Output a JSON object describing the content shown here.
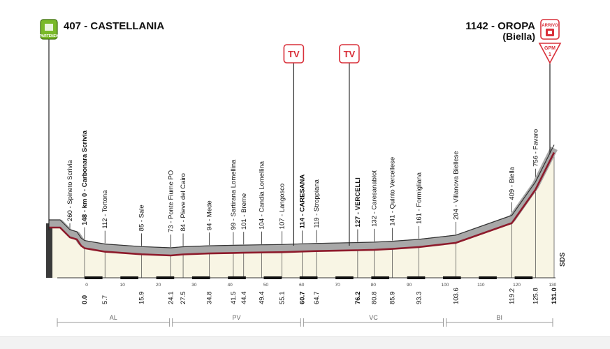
{
  "start": {
    "badge": "PARTENZA",
    "label": "407 - CASTELLANIA"
  },
  "finish": {
    "label": "1142 - OROPA",
    "sublabel": "(Biella)",
    "badge": "ARRIVO",
    "gpm_label": "GPM",
    "gpm_cat": "1"
  },
  "tv_label": "TV",
  "watermark": "SDS",
  "colors": {
    "profile_gray": "#a8a8a8",
    "route_red": "#8e1b2c",
    "fill": "#f8f5e4",
    "badge_green": "#7ab929",
    "badge_red": "#d9303a"
  },
  "chart_data": {
    "type": "area",
    "xlabel": "",
    "ylabel": "",
    "xlim": [
      0,
      131
    ],
    "x_ticks": [
      "0",
      "10",
      "20",
      "30",
      "40",
      "50",
      "60",
      "70",
      "80",
      "90",
      "100",
      "110",
      "120",
      "130"
    ],
    "profile": [
      {
        "km": 0.0,
        "alt": 148
      },
      {
        "km": 5.7,
        "alt": 112
      },
      {
        "km": 15.9,
        "alt": 85
      },
      {
        "km": 24.1,
        "alt": 73
      },
      {
        "km": 27.5,
        "alt": 84
      },
      {
        "km": 34.8,
        "alt": 94
      },
      {
        "km": 41.5,
        "alt": 99
      },
      {
        "km": 44.4,
        "alt": 101
      },
      {
        "km": 49.4,
        "alt": 104
      },
      {
        "km": 55.1,
        "alt": 107
      },
      {
        "km": 60.7,
        "alt": 114
      },
      {
        "km": 64.7,
        "alt": 119
      },
      {
        "km": 76.2,
        "alt": 127
      },
      {
        "km": 80.8,
        "alt": 132
      },
      {
        "km": 85.9,
        "alt": 141
      },
      {
        "km": 93.3,
        "alt": 161
      },
      {
        "km": 103.6,
        "alt": 204
      },
      {
        "km": 119.2,
        "alt": 409
      },
      {
        "km": 125.8,
        "alt": 756
      },
      {
        "km": 131.0,
        "alt": 1142
      }
    ],
    "waypoints": [
      {
        "name": "260 - Spineto Scrivia",
        "km": "",
        "bold": false
      },
      {
        "name": "148 - km 0 - Carbonara Scrivia",
        "km": "0.0",
        "bold": true
      },
      {
        "name": "112 - Tortona",
        "km": "5.7",
        "bold": false
      },
      {
        "name": "85 - Sale",
        "km": "15.9",
        "bold": false
      },
      {
        "name": "73 - Ponte Fiume PO",
        "km": "24.1",
        "bold": false
      },
      {
        "name": "84 - Pieve del Cairo",
        "km": "27.5",
        "bold": false
      },
      {
        "name": "94 - Mede",
        "km": "34.8",
        "bold": false
      },
      {
        "name": "99 - Sartirana Lomellina",
        "km": "41.5",
        "bold": false
      },
      {
        "name": "101 - Breme",
        "km": "44.4",
        "bold": false
      },
      {
        "name": "104 - Candia Lomellina",
        "km": "49.4",
        "bold": false
      },
      {
        "name": "107 - Langosco",
        "km": "55.1",
        "bold": false
      },
      {
        "name": "114 - CARESANA",
        "km": "60.7",
        "bold": true
      },
      {
        "name": "119 - Stroppiana",
        "km": "64.7",
        "bold": false
      },
      {
        "name": "127 - VERCELLI",
        "km": "76.2",
        "bold": true
      },
      {
        "name": "132 - Caresanablot",
        "km": "80.8",
        "bold": false
      },
      {
        "name": "141 - Quinto Vercellese",
        "km": "85.9",
        "bold": false
      },
      {
        "name": "161 - Formigliana",
        "km": "93.3",
        "bold": false
      },
      {
        "name": "204 - Villanova Biellese",
        "km": "103.6",
        "bold": false
      },
      {
        "name": "409 - Biella",
        "km": "119.2",
        "bold": false
      },
      {
        "name": "756 - Favaro",
        "km": "125.8",
        "bold": false
      },
      {
        "name": "",
        "km": "131.0",
        "bold": true
      }
    ],
    "tv_km": [
      60.7,
      76.2
    ],
    "provinces": [
      {
        "label": "AL",
        "from": -7,
        "to": 24.1
      },
      {
        "label": "PV",
        "from": 24.1,
        "to": 60.7
      },
      {
        "label": "VC",
        "from": 60.7,
        "to": 100.5
      },
      {
        "label": "BI",
        "from": 100.5,
        "to": 131
      }
    ]
  }
}
